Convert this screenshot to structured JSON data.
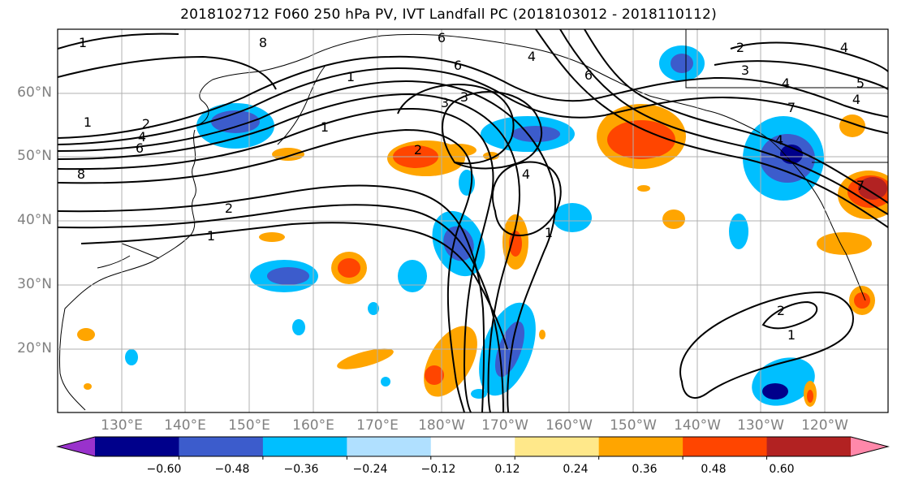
{
  "title": "2018102712 F060 250 hPa PV, IVT Landfall PC (2018103012 - 2018110112)",
  "map": {
    "lat_labels": [
      "60°N",
      "50°N",
      "40°N",
      "30°N",
      "20°N"
    ],
    "lon_labels": [
      "130°E",
      "140°E",
      "150°E",
      "160°E",
      "170°E",
      "180°W",
      "170°W",
      "160°W",
      "150°W",
      "140°W",
      "130°W",
      "120°W"
    ],
    "contour_labels": [
      "1",
      "8",
      "6",
      "3",
      "1",
      "2",
      "4",
      "6",
      "8",
      "1",
      "2",
      "3",
      "2",
      "1",
      "4",
      "6",
      "4",
      "1",
      "6",
      "2",
      "3",
      "4",
      "5",
      "4",
      "7",
      "4",
      "1",
      "2",
      "1",
      "4",
      "7"
    ]
  },
  "colorbar": {
    "colors": [
      "#9932cc",
      "#00008b",
      "#3c5ccc",
      "#00bfff",
      "#b0e0ff",
      "#ffffff",
      "#ffe88a",
      "#ffa500",
      "#ff4500",
      "#b22222",
      "#ff88aa"
    ],
    "ticks": [
      "−0.60",
      "−0.48",
      "−0.36",
      "−0.24",
      "−0.12",
      "0.12",
      "0.24",
      "0.36",
      "0.48",
      "0.60"
    ]
  }
}
